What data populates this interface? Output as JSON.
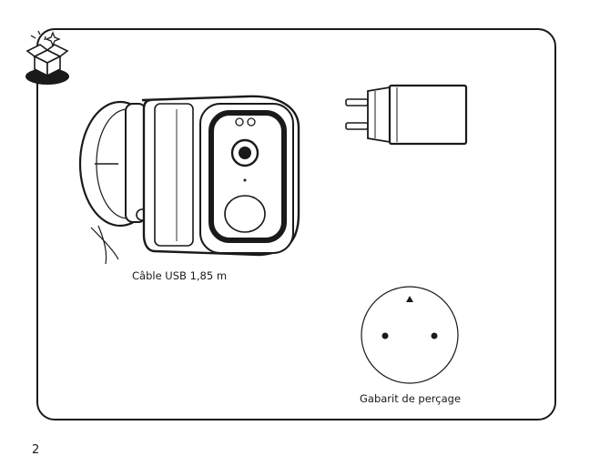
{
  "contents": {
    "cable_label": "Câble USB 1,85 m",
    "template_label": "Gabarit de perçage"
  },
  "footer": {
    "page_number": "2"
  },
  "icons": [
    "unboxing-icon",
    "camera-illustration",
    "power-adapter-illustration",
    "drilling-template-illustration"
  ]
}
